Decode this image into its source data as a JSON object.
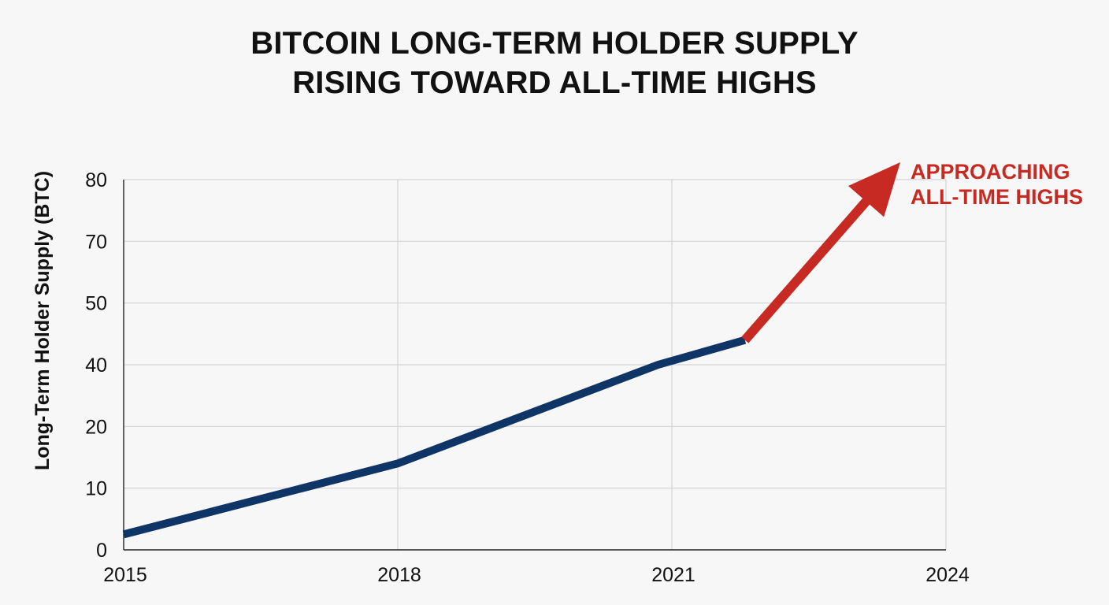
{
  "chart_data": {
    "type": "line",
    "title_lines": [
      "BITCOIN LONG-TERM HOLDER SUPPLY",
      "RISING TOWARD ALL-TIME HIGHS"
    ],
    "xlabel": "",
    "ylabel": "Long-Term Holder Supply (BTC)",
    "x_ticks": [
      "2015",
      "2018",
      "2021",
      "2024"
    ],
    "y_ticks": [
      "0",
      "10",
      "20",
      "40",
      "50",
      "70",
      "80"
    ],
    "xlim": [
      2015,
      2024
    ],
    "grid": true,
    "series": [
      {
        "color": "#0f3466",
        "points": [
          {
            "x": 2015.0,
            "y": 2.5
          },
          {
            "x": 2018.0,
            "y": 14
          },
          {
            "x": 2020.85,
            "y": 40
          },
          {
            "x": 2021.8,
            "y": 44
          }
        ]
      }
    ],
    "annotation": {
      "text_lines": [
        "APPROACHING",
        "ALL-TIME HIGHS"
      ],
      "color": "#c62a22",
      "arrow_from": {
        "x": 2021.8,
        "y": 44
      },
      "arrow_to": {
        "x": 2023.5,
        "y": 80
      }
    }
  }
}
